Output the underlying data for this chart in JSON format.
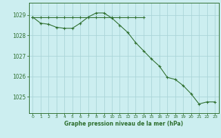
{
  "title": "Graphe pression niveau de la mer (hPa)",
  "background_color": "#cceef0",
  "grid_color": "#aad4d8",
  "line_color": "#2d6e2d",
  "marker_color": "#2d6e2d",
  "xlim": [
    -0.5,
    23.5
  ],
  "ylim": [
    1024.2,
    1029.6
  ],
  "yticks": [
    1025,
    1026,
    1027,
    1028,
    1029
  ],
  "xticks": [
    0,
    1,
    2,
    3,
    4,
    5,
    6,
    7,
    8,
    9,
    10,
    11,
    12,
    13,
    14,
    15,
    16,
    17,
    18,
    19,
    20,
    21,
    22,
    23
  ],
  "series1_x": [
    0,
    1,
    2,
    3,
    4,
    5,
    6,
    7,
    8,
    9,
    10,
    11,
    12,
    13,
    14
  ],
  "series1_y": [
    1028.9,
    1028.9,
    1028.9,
    1028.9,
    1028.9,
    1028.9,
    1028.9,
    1028.9,
    1028.9,
    1028.9,
    1028.9,
    1028.9,
    1028.9,
    1028.9,
    1028.9
  ],
  "series2_x": [
    0,
    1,
    2,
    3,
    4,
    5,
    6,
    7,
    8,
    9,
    10,
    11,
    12,
    13,
    14,
    15,
    16,
    17,
    18,
    19,
    20,
    21,
    22,
    23
  ],
  "series2_y": [
    1028.9,
    1028.6,
    1028.55,
    1028.4,
    1028.35,
    1028.35,
    1028.6,
    1028.9,
    1029.1,
    1029.1,
    1028.85,
    1028.5,
    1028.15,
    1027.65,
    1027.25,
    1026.85,
    1026.5,
    1025.95,
    1025.85,
    1025.55,
    1025.15,
    1024.65,
    1024.75,
    1024.75
  ]
}
